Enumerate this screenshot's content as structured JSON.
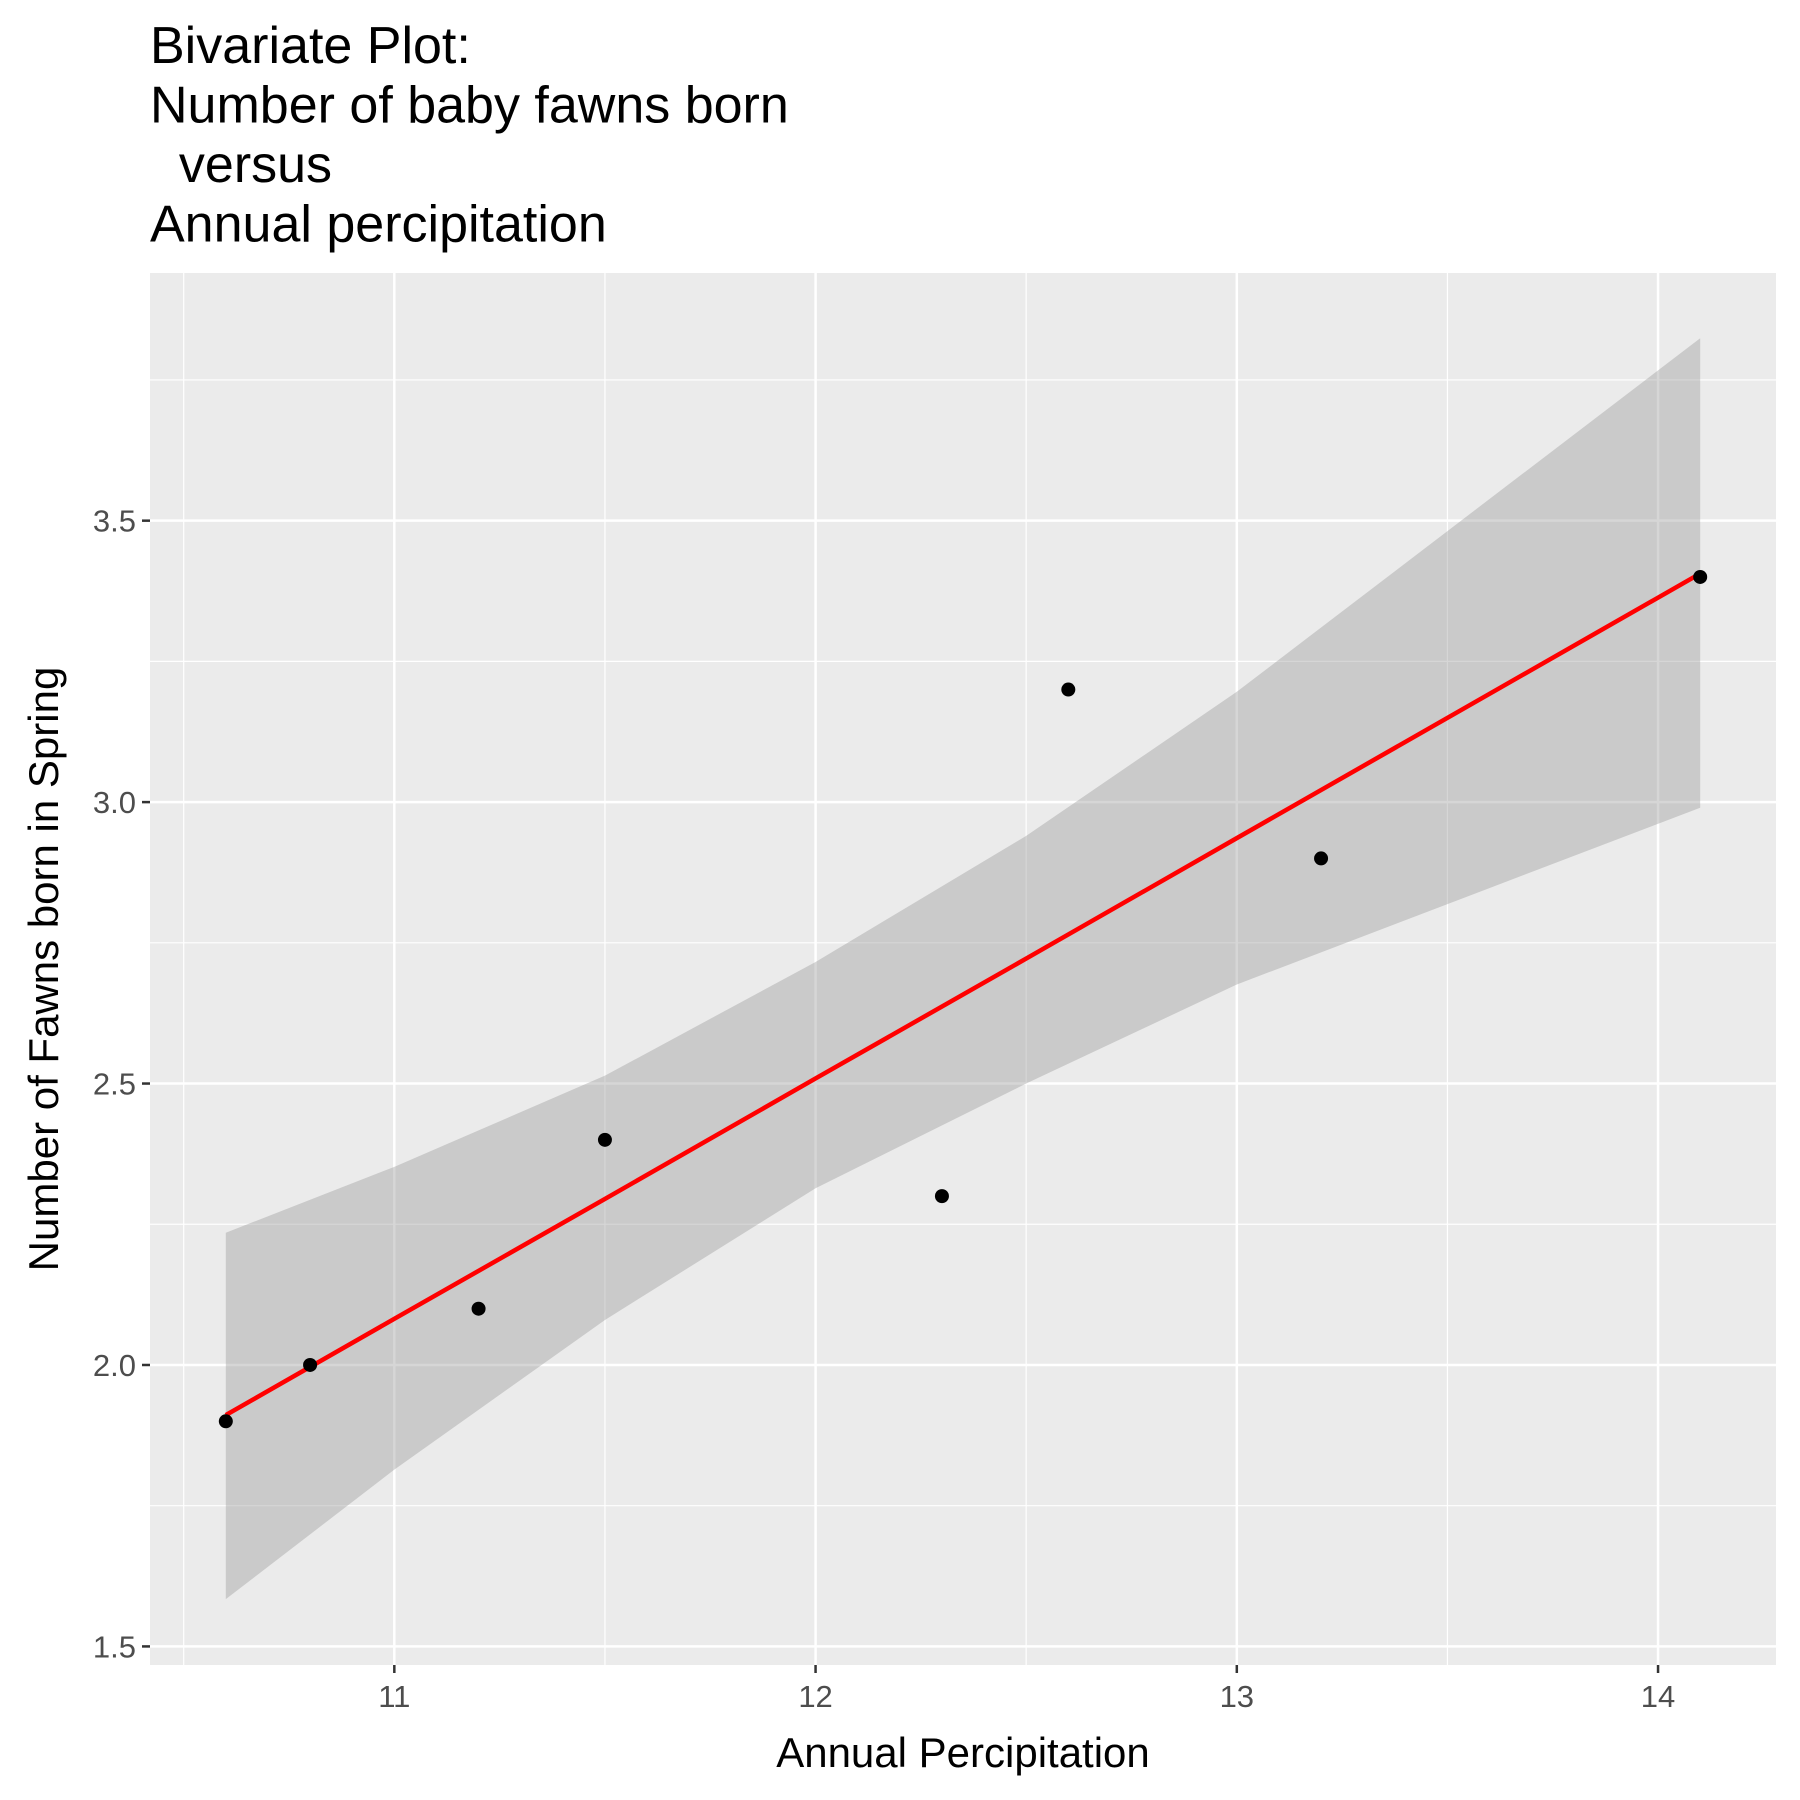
{
  "chart_data": {
    "type": "scatter",
    "title_lines": [
      "Bivariate Plot:",
      "Number of baby fawns born",
      "  versus",
      "Annual percipitation"
    ],
    "x_label": "Annual Percipitation",
    "y_label": "Number of Fawns born in Spring",
    "series": [
      {
        "color": "#000000",
        "x": [
          10.6,
          10.8,
          11.2,
          11.5,
          12.3,
          12.6,
          13.2,
          14.1
        ],
        "values": [
          1.9,
          2.0,
          2.1,
          2.4,
          2.3,
          3.2,
          2.9,
          3.4
        ]
      }
    ],
    "smooth": {
      "color": "#ff0000",
      "band_color": "#999999",
      "x": [
        10.6,
        11,
        11.5,
        12,
        12.5,
        13,
        14.1
      ],
      "fit": [
        1.911,
        2.082,
        2.295,
        2.509,
        2.722,
        2.936,
        3.406
      ],
      "lower": [
        1.584,
        1.814,
        2.08,
        2.314,
        2.5,
        2.676,
        2.99
      ],
      "upper": [
        2.235,
        2.352,
        2.514,
        2.716,
        2.94,
        3.196,
        3.824
      ]
    },
    "xlim": [
      10.42,
      14.28
    ],
    "ylim": [
      1.467,
      3.94
    ],
    "xticks": [
      11,
      12,
      13,
      14
    ],
    "yticks": [
      1.5,
      {
        "value": 2.0,
        "label": "2.0"
      },
      2.5,
      {
        "value": 3.0,
        "label": "3.0"
      },
      3.5
    ],
    "x_minor_grid": [
      10.5,
      11.5,
      12.5,
      13.5
    ],
    "y_minor_grid": [
      1.75,
      2.25,
      2.75,
      3.25,
      3.75
    ],
    "grid": true
  }
}
